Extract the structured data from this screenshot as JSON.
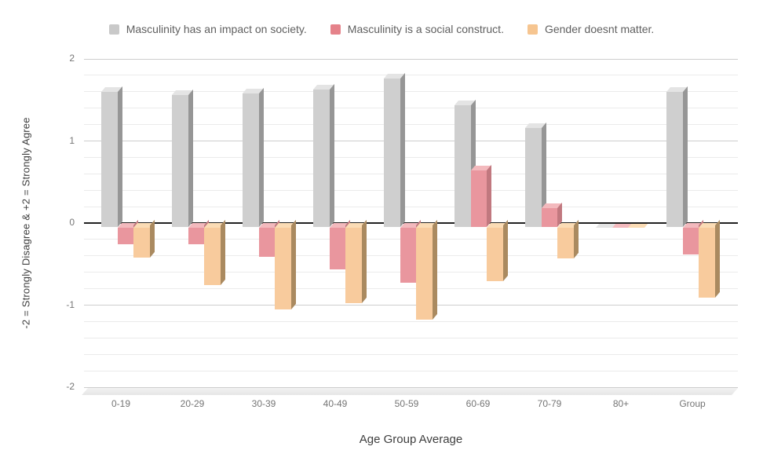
{
  "chart_data": {
    "type": "bar",
    "style": "3d-column",
    "categories": [
      "0-19",
      "20-29",
      "30-39",
      "40-49",
      "50-59",
      "60-69",
      "70-79",
      "80+",
      "Group"
    ],
    "series": [
      {
        "name": "Masculinity has an impact on society.",
        "values": [
          1.6,
          1.56,
          1.58,
          1.63,
          1.76,
          1.44,
          1.16,
          0,
          1.6
        ],
        "color": "#CFCFCF",
        "color_side": "#969696",
        "color_top": "#E4E4E4",
        "color_legend": "#C9C9C9"
      },
      {
        "name": "Masculinity is a social construct.",
        "values": [
          -0.26,
          -0.26,
          -0.41,
          -0.56,
          -0.73,
          0.64,
          0.18,
          0,
          -0.38
        ],
        "color": "#E9969E",
        "color_side": "#C1787F",
        "color_top": "#F3B9BD",
        "color_legend": "#E5828A"
      },
      {
        "name": "Gender doesnt matter.",
        "values": [
          -0.42,
          -0.76,
          -1.05,
          -0.98,
          -1.18,
          -0.71,
          -0.43,
          0,
          -0.91
        ],
        "color": "#F8CB9D",
        "color_side": "#AA8A60",
        "color_top": "#FBDCB5",
        "color_legend": "#F6C590"
      }
    ],
    "xlabel": "Age Group Average",
    "ylabel": "-2 = Strongly Disagree & +2 = Strongly Agree",
    "ylim": [
      -2,
      2
    ],
    "y_ticks": [
      "2",
      "1",
      "0",
      "-1",
      "-2"
    ],
    "minor_grid_step": 0.2,
    "grid": "on",
    "legend_position": "top",
    "zero_line_color": "#212121"
  }
}
